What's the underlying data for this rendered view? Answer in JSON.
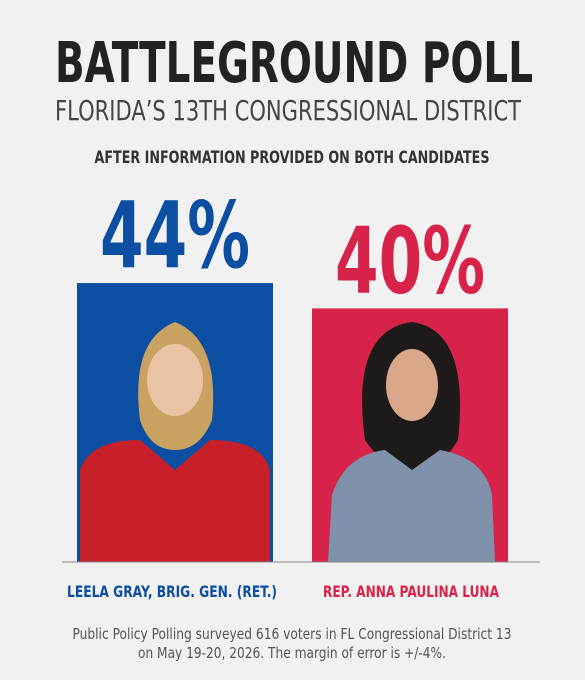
{
  "chart_data": {
    "type": "bar",
    "title": "BATTLEGROUND POLL",
    "subtitle": "FLORIDA’S 13TH CONGRESSIONAL DISTRICT",
    "annotation": "AFTER INFORMATION PROVIDED ON BOTH CANDIDATES",
    "categories": [
      "LEELA GRAY, BRIG. GEN. (RET.)",
      "REP. ANNA PAULINA LUNA"
    ],
    "values": [
      44,
      40
    ],
    "value_labels": [
      "44%",
      "40%"
    ],
    "colors": [
      "#0b4ea2",
      "#d7234a"
    ],
    "footnote": [
      "Public Policy Polling surveyed 616 voters in FL Congressional District 13",
      "on May 19-20, 2026. The margin of error is +/-4%."
    ]
  }
}
